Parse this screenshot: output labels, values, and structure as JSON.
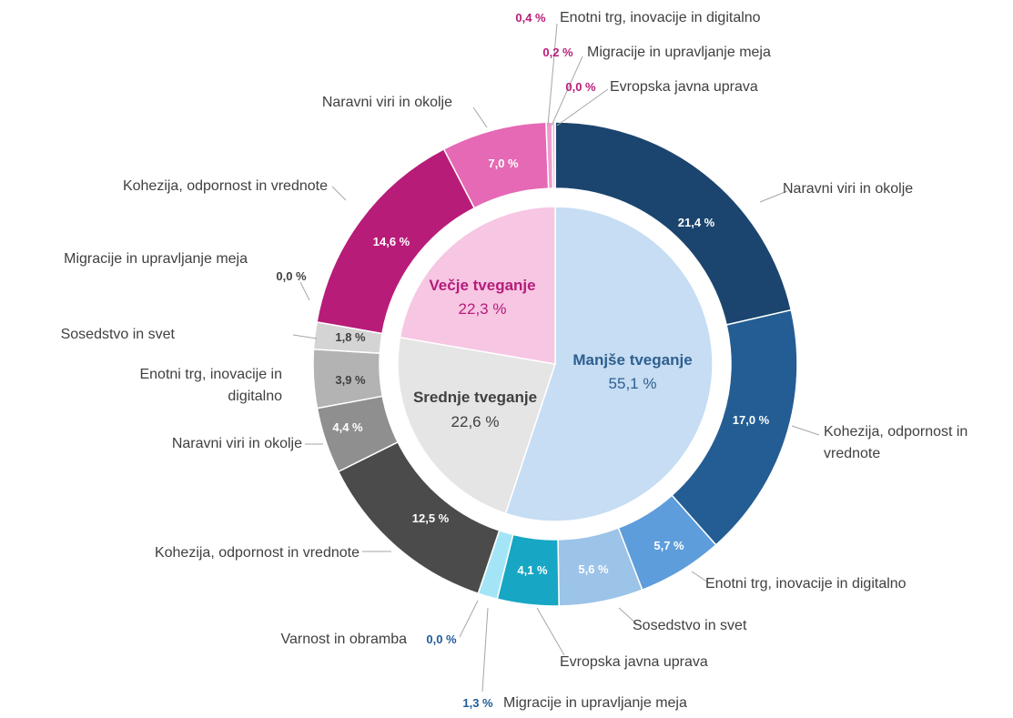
{
  "chart_data": {
    "type": "sunburst",
    "rings": [
      {
        "categories": [
          "Manjše tveganje",
          "Srednje tveganje",
          "Večje tveganje"
        ],
        "values": [
          55.1,
          22.6,
          22.3
        ],
        "value_labels": [
          "55,1 %",
          "22,6 %",
          "22,3 %"
        ],
        "colors": [
          "#c6ddf3",
          "#e5e5e5",
          "#f6c6e3"
        ],
        "label_colors": [
          "#2e5f8f",
          "#404040",
          "#b51c7a"
        ]
      },
      {
        "categories": [
          "Naravni viri in okolje",
          "Kohezija, odpornost in vrednote",
          "Enotni trg, inovacije in digitalno",
          "Sosedstvo in svet",
          "Evropska javna uprava",
          "Migracije in upravljanje meja",
          "Varnost in obramba",
          "Kohezija, odpornost in vrednote",
          "Naravni viri in okolje",
          "Enotni trg, inovacije in digitalno",
          "Sosedstvo in svet",
          "Migracije in upravljanje meja",
          "Kohezija, odpornost in vrednote",
          "Naravni viri in okolje",
          "Enotni trg, inovacije in digitalno",
          "Migracije in upravljanje meja",
          "Evropska javna uprava"
        ],
        "values": [
          21.4,
          17.0,
          5.7,
          5.6,
          4.1,
          1.3,
          0.0,
          12.5,
          4.4,
          3.9,
          1.8,
          0.0,
          14.6,
          7.0,
          0.4,
          0.2,
          0.0
        ],
        "value_labels": [
          "21,4 %",
          "17,0 %",
          "5,7 %",
          "5,6 %",
          "4,1 %",
          "1,3 %",
          "0,0 %",
          "12,5 %",
          "4,4 %",
          "3,9 %",
          "1,8 %",
          "0,0 %",
          "14,6 %",
          "7,0 %",
          "0,4 %",
          "0,2 %",
          "0,0 %"
        ],
        "colors": [
          "#1b456e",
          "#235d93",
          "#5d9ddb",
          "#9cc3e8",
          "#17a6c4",
          "#a3e5f6",
          "#7fd3ea",
          "#4b4b4b",
          "#8f8f8f",
          "#b3b3b3",
          "#d4d4d4",
          "#eeeeee",
          "#b81c79",
          "#e569b4",
          "#f09bcd",
          "#f6b5db",
          "#e9a0cc"
        ]
      }
    ]
  }
}
